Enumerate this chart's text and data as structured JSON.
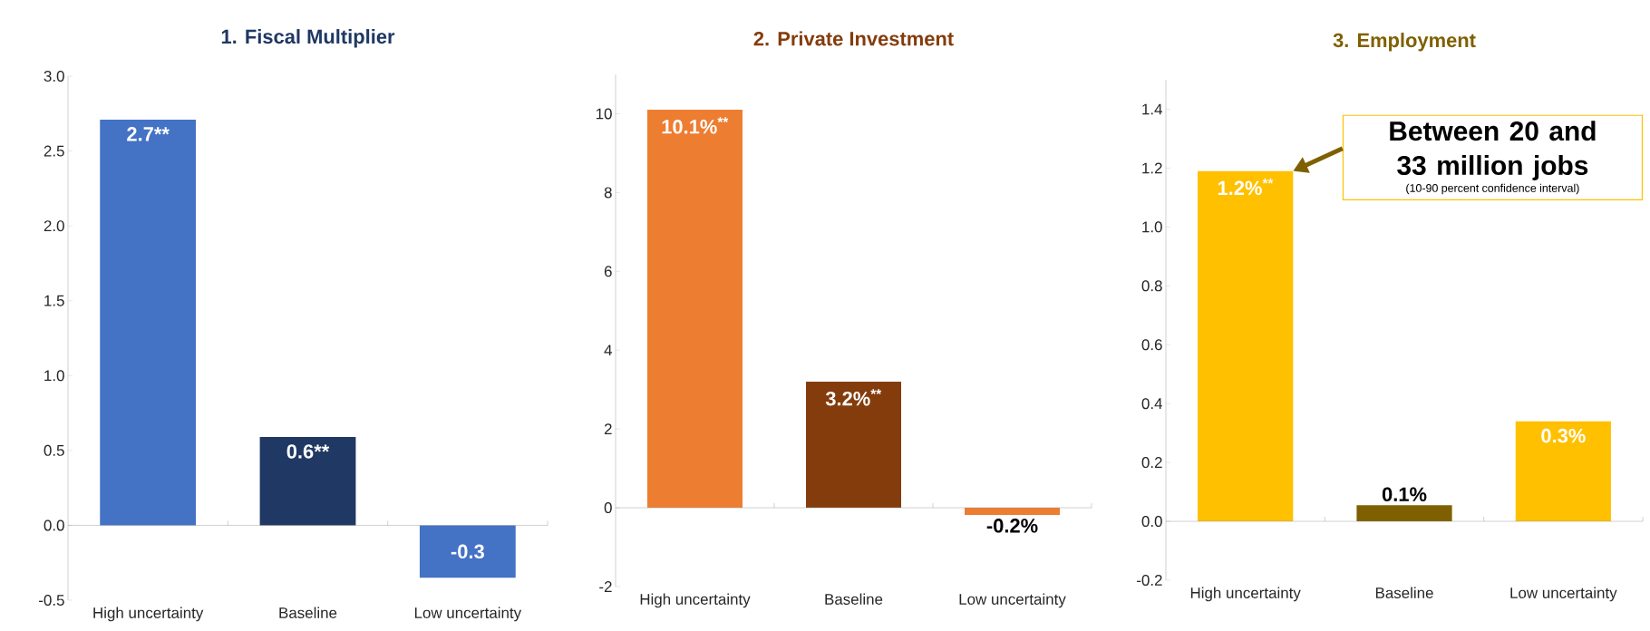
{
  "chart_data": [
    {
      "type": "bar",
      "title": "1. Fiscal Multiplier",
      "categories": [
        "High uncertainty",
        "Baseline",
        "Low uncertainty"
      ],
      "values": [
        2.71,
        0.59,
        -0.35
      ],
      "colors": [
        "#4472c4",
        "#1f3864",
        "#4472c4"
      ],
      "value_labels": [
        "2.7**",
        "0.6**",
        "-0.3"
      ],
      "ylim": [
        -0.5,
        3.0
      ],
      "yticks": [
        {
          "value": -0.5,
          "label": "-0.5"
        },
        {
          "value": 0,
          "label": "0.0"
        },
        {
          "value": 0.5,
          "label": "0.5"
        },
        {
          "value": 1,
          "label": "1.0"
        },
        {
          "value": 1.5,
          "label": "1.5"
        },
        {
          "value": 2,
          "label": "2.0"
        },
        {
          "value": 2.5,
          "label": "2.5"
        },
        {
          "value": 3,
          "label": "3.0"
        }
      ]
    },
    {
      "type": "bar",
      "title": "2. Private Investment",
      "categories": [
        "High uncertainty",
        "Baseline",
        "Low uncertainty"
      ],
      "values": [
        10.1,
        3.2,
        -0.18
      ],
      "colors": [
        "#ed7d31",
        "#843c0c",
        "#ed7d31"
      ],
      "value_labels": [
        "10.1%$^{**}$",
        "3.2%$^{**}$",
        "-0.2%"
      ],
      "ylim": [
        -2,
        11
      ],
      "yticks": [
        -2,
        0,
        2,
        4,
        6,
        8,
        10
      ]
    },
    {
      "type": "bar",
      "title": "3. Employment",
      "categories": [
        "High uncertainty",
        "Baseline",
        "Low uncertainty"
      ],
      "values": [
        1.19,
        0.055,
        0.34
      ],
      "colors": [
        "#ffc000",
        "#7f6000",
        "#ffc000"
      ],
      "value_labels": [
        "1.2%$^{**}$",
        "0.1%",
        "0.3%"
      ],
      "ylim": [
        -0.2,
        1.5
      ],
      "yticks": [
        {
          "value": -0.2,
          "label": "-0.2"
        },
        {
          "value": 0,
          "label": "0.0"
        },
        {
          "value": 0.2,
          "label": "0.2"
        },
        {
          "value": 0.4,
          "label": "0.4"
        },
        {
          "value": 0.6,
          "label": "0.6"
        },
        {
          "value": 0.8,
          "label": "0.8"
        },
        {
          "value": 1,
          "label": "1.0"
        },
        {
          "value": 1.2,
          "label": "1.2"
        },
        {
          "value": 1.4,
          "label": "1.4"
        }
      ],
      "annotations": [
        "Between 20 and 33 million jobs",
        "(10-90 percent confidence interval)"
      ]
    }
  ]
}
